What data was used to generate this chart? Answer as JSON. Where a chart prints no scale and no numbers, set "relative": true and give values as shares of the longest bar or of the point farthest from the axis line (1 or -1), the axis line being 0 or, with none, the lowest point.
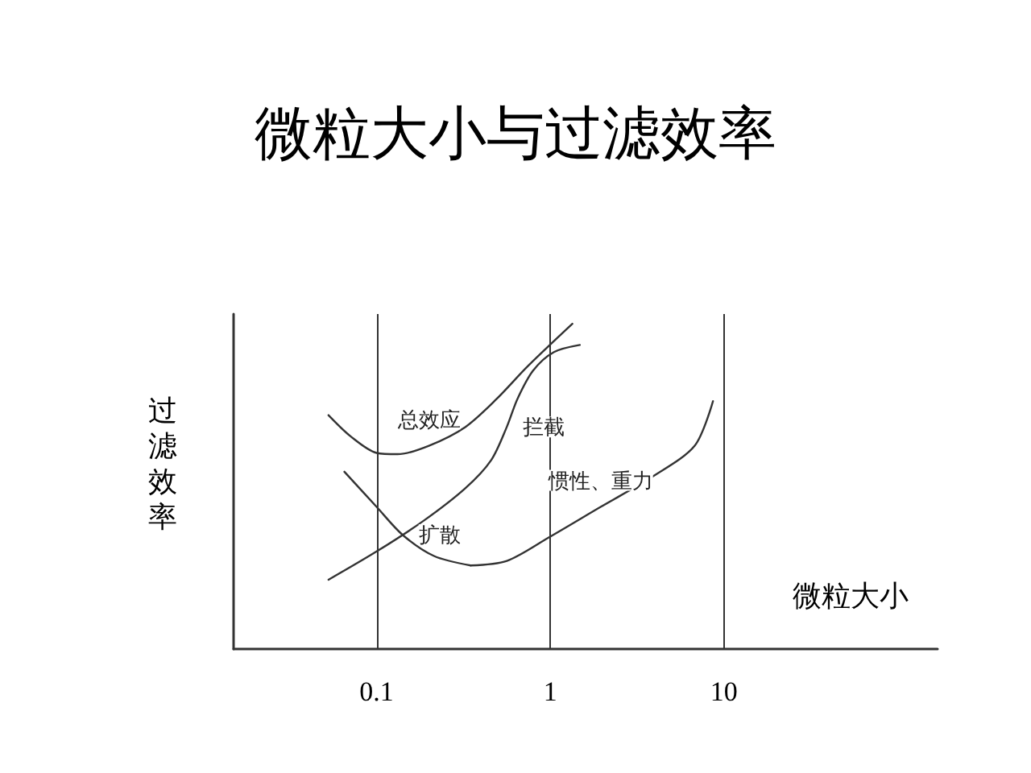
{
  "chart_data": {
    "type": "line",
    "title": "微粒大小与过滤效率",
    "xlabel": "微粒大小",
    "ylabel": "过滤效率",
    "relative": true,
    "log": "x",
    "grid": "x",
    "legend": false,
    "marker": "none",
    "line_style": "solid",
    "color": "#333333",
    "xlim": [
      0.015,
      170
    ],
    "xticks": [
      0.1,
      1,
      10
    ],
    "tick_labels": "x",
    "series": [
      {
        "name": "总效应",
        "x": [
          0.0528,
          0.0708,
          0.1,
          0.132,
          0.2,
          0.325,
          0.491,
          0.743,
          1.34
        ],
        "values": [
          0.719,
          0.654,
          0.603,
          0.599,
          0.625,
          0.683,
          0.769,
          0.87,
          1.0
        ]
      },
      {
        "name": "扩散",
        "x": [
          0.0652,
          0.1,
          0.141,
          0.214,
          0.348
        ],
        "values": [
          0.545,
          0.437,
          0.351,
          0.286,
          0.257
        ]
      },
      {
        "name": "惯性、重力",
        "x": [
          0.348,
          0.562,
          0.98,
          1.95,
          3.91,
          6.79,
          8.65
        ],
        "values": [
          0.257,
          0.271,
          0.343,
          0.437,
          0.531,
          0.625,
          0.762
        ]
      },
      {
        "name": "拦截",
        "x": [
          0.0528,
          0.1,
          0.186,
          0.325,
          0.457,
          0.562,
          0.647,
          0.796,
          1.05,
          1.48
        ],
        "values": [
          0.213,
          0.3,
          0.394,
          0.495,
          0.581,
          0.683,
          0.769,
          0.856,
          0.913,
          0.935
        ]
      }
    ]
  }
}
